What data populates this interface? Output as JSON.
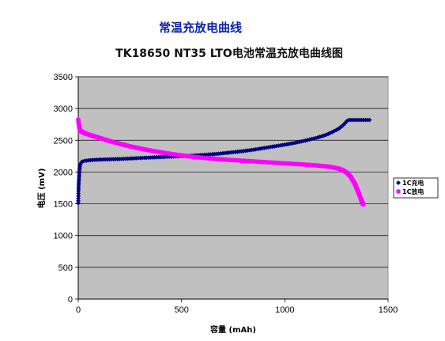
{
  "heading": "常温充放电曲线",
  "colors": {
    "heading": "#0a23a8",
    "plot_background": "#c0c0c0",
    "gridline": "#000000",
    "charge": "#000080",
    "discharge": "#ff00ff"
  },
  "chart_data": {
    "type": "scatter",
    "title": "TK18650 NT35 LTO电池常温充放电曲线图",
    "xlabel": "容量 (mAh)",
    "ylabel": "电压 (mV)",
    "xlim": [
      0,
      1500
    ],
    "ylim": [
      0,
      3500
    ],
    "x_ticks": [
      "0",
      "500",
      "1000",
      "1500"
    ],
    "y_ticks": [
      "0",
      "500",
      "1000",
      "1500",
      "2000",
      "2500",
      "3000",
      "3500"
    ],
    "grid": "horizontal",
    "legend_position": "right",
    "series": [
      {
        "name": "1C充电",
        "color": "#000080",
        "marker": "diamond",
        "x": [
          0,
          1,
          2,
          3,
          4,
          5,
          6,
          8,
          10,
          15,
          20,
          30,
          40,
          60,
          80,
          100,
          150,
          200,
          250,
          300,
          350,
          400,
          450,
          500,
          550,
          600,
          650,
          700,
          750,
          800,
          850,
          900,
          950,
          1000,
          1050,
          1100,
          1150,
          1200,
          1230,
          1260,
          1280,
          1300,
          1310,
          1330,
          1350,
          1370,
          1390,
          1410
        ],
        "y": [
          1510,
          1700,
          1800,
          1860,
          1920,
          1980,
          2040,
          2090,
          2120,
          2150,
          2165,
          2175,
          2180,
          2188,
          2192,
          2195,
          2200,
          2205,
          2212,
          2220,
          2228,
          2235,
          2243,
          2250,
          2258,
          2268,
          2280,
          2295,
          2312,
          2330,
          2352,
          2378,
          2405,
          2430,
          2460,
          2495,
          2535,
          2585,
          2630,
          2680,
          2730,
          2800,
          2820,
          2820,
          2820,
          2820,
          2820,
          2820
        ]
      },
      {
        "name": "1C放电",
        "color": "#ff00ff",
        "marker": "square",
        "x": [
          0,
          2,
          4,
          6,
          8,
          10,
          15,
          20,
          30,
          40,
          60,
          80,
          100,
          150,
          200,
          250,
          300,
          350,
          400,
          450,
          500,
          550,
          600,
          650,
          700,
          750,
          800,
          850,
          900,
          950,
          1000,
          1050,
          1100,
          1150,
          1200,
          1230,
          1260,
          1280,
          1300,
          1320,
          1340,
          1350,
          1360,
          1370,
          1375,
          1380
        ],
        "y": [
          2820,
          2760,
          2720,
          2690,
          2670,
          2655,
          2640,
          2630,
          2615,
          2600,
          2580,
          2560,
          2540,
          2490,
          2445,
          2405,
          2370,
          2338,
          2310,
          2285,
          2262,
          2242,
          2225,
          2210,
          2198,
          2187,
          2177,
          2167,
          2157,
          2147,
          2137,
          2127,
          2117,
          2105,
          2090,
          2075,
          2055,
          2030,
          1990,
          1920,
          1810,
          1730,
          1650,
          1560,
          1520,
          1490
        ]
      }
    ]
  }
}
